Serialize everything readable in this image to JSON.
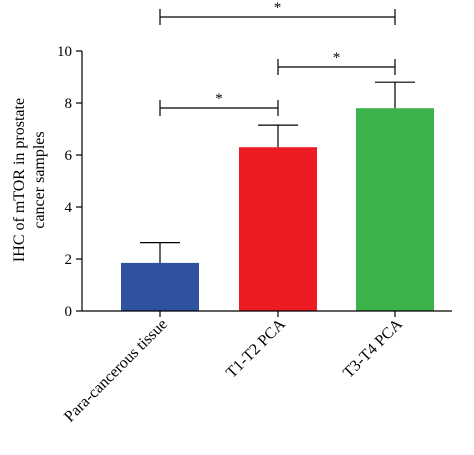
{
  "chart_data": {
    "type": "bar",
    "title": "",
    "ylabel_lines": [
      "IHC of mTOR in prostate",
      "cancer samples"
    ],
    "xlabel": "",
    "categories": [
      "Para-cancerous tissue",
      "T1-T2 PCA",
      "T3-T4 PCA"
    ],
    "values": [
      1.85,
      6.3,
      7.8
    ],
    "errors": [
      0.78,
      0.85,
      1.0
    ],
    "colors": [
      "#3050a0",
      "#ed1c24",
      "#3cb34a"
    ],
    "ylim": [
      0,
      10
    ],
    "yticks": [
      "0",
      "2",
      "4",
      "6",
      "8",
      "10"
    ],
    "significance": [
      {
        "from": 0,
        "to": 1,
        "label": "*"
      },
      {
        "from": 1,
        "to": 2,
        "label": "*"
      },
      {
        "from": 0,
        "to": 2,
        "label": "*"
      }
    ]
  }
}
